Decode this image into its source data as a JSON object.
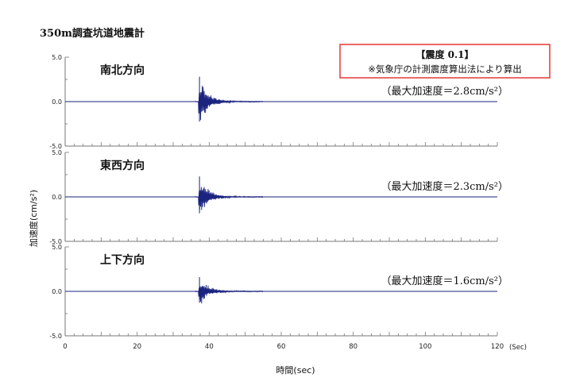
{
  "chart_data": {
    "type": "line",
    "title": "350m調査坑道地震計",
    "xlabel": "時間(sec)",
    "ylabel": "加速度(cm/s²)",
    "xlim": [
      0,
      120
    ],
    "x_unit": "(Sec)",
    "x_ticks": [
      "0",
      "20",
      "40",
      "60",
      "80",
      "100",
      "120"
    ],
    "ylim": [
      -5.0,
      5.0
    ],
    "y_ticks": [
      "5.0",
      "0.0",
      "-5.0"
    ],
    "waveform_onset_sec": 37,
    "panels": [
      {
        "name": "南北方向",
        "max_label": "（最大加速度＝2.8cm/s²）",
        "max_acceleration": 2.8
      },
      {
        "name": "東西方向",
        "max_label": "（最大加速度＝2.3cm/s²）",
        "max_acceleration": 2.3
      },
      {
        "name": "上下方向",
        "max_label": "（最大加速度＝1.6cm/s²）",
        "max_acceleration": 1.6
      }
    ],
    "series_color": "#1a237e",
    "annotation": {
      "title": "【震度 0.1】",
      "note": "※気象庁の計測震度算出法により算出",
      "border_color": "#e53935"
    }
  }
}
